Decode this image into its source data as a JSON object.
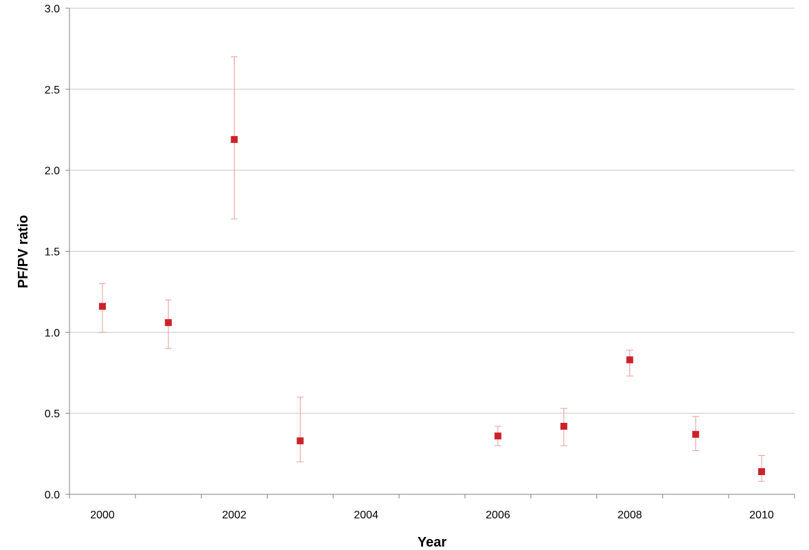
{
  "chart_data": {
    "type": "scatter",
    "title": "",
    "xlabel": "Year",
    "ylabel": "PF/PV ratio",
    "xlim": [
      1999.5,
      2010.5
    ],
    "ylim": [
      0,
      3.0
    ],
    "x_ticks": [
      2000,
      2002,
      2004,
      2006,
      2008,
      2010
    ],
    "y_ticks": [
      0.0,
      0.5,
      1.0,
      1.5,
      2.0,
      2.5,
      3.0
    ],
    "y_tick_labels": [
      "0.0",
      "0.5",
      "1.0",
      "1.5",
      "2.0",
      "2.5",
      "3.0"
    ],
    "grid": true,
    "legend": "none",
    "series": [
      {
        "name": "",
        "color": "#cc2229",
        "marker": "square",
        "points": [
          {
            "x": 2000,
            "y": 1.16,
            "err_low": 1.0,
            "err_high": 1.3
          },
          {
            "x": 2001,
            "y": 1.06,
            "err_low": 0.9,
            "err_high": 1.2
          },
          {
            "x": 2002,
            "y": 2.19,
            "err_low": 1.7,
            "err_high": 2.7
          },
          {
            "x": 2003,
            "y": 0.33,
            "err_low": 0.2,
            "err_high": 0.6
          },
          {
            "x": 2006,
            "y": 0.36,
            "err_low": 0.3,
            "err_high": 0.42
          },
          {
            "x": 2007,
            "y": 0.42,
            "err_low": 0.3,
            "err_high": 0.53
          },
          {
            "x": 2008,
            "y": 0.83,
            "err_low": 0.73,
            "err_high": 0.89
          },
          {
            "x": 2009,
            "y": 0.37,
            "err_low": 0.27,
            "err_high": 0.48
          },
          {
            "x": 2010,
            "y": 0.14,
            "err_low": 0.08,
            "err_high": 0.24
          }
        ]
      }
    ]
  }
}
